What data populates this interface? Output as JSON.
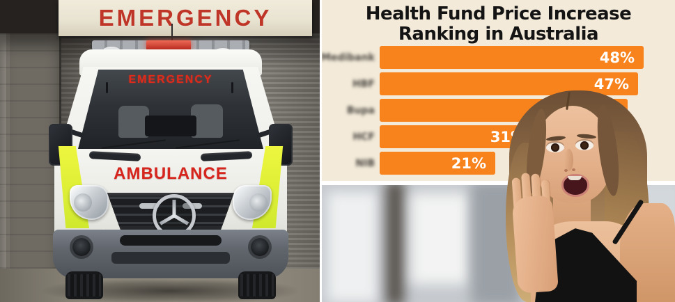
{
  "chart_data": {
    "type": "bar",
    "orientation": "horizontal",
    "title": "Health Fund Price Increase Ranking in Australia",
    "title_lines": [
      "Health Fund Price Increase",
      "Ranking in Australia"
    ],
    "categories": [
      "Medibank",
      "HBF",
      "Bupa",
      "HCF",
      "NIB"
    ],
    "categories_blurred": true,
    "values": [
      48,
      47,
      45,
      31,
      21
    ],
    "value_labels": [
      "48%",
      "47%",
      "45%",
      "31%",
      "21%"
    ],
    "xlim": [
      0,
      50
    ],
    "bar_color": "#F8821B",
    "background": "#F3EAD9",
    "value_label_color": "#FFFFFF",
    "legend": false,
    "gridlines": false
  },
  "ambulance_scene": {
    "sign_text": "EMERGENCY",
    "windshield_text": "EMERGENCY",
    "hood_text": "AMBULANCE",
    "sign_text_color": "#BF3527",
    "hood_text_color": "#D6251D",
    "fluoro_color": "#DFF23C",
    "icons": {
      "grille_badge": "mercedes-star-icon"
    }
  }
}
